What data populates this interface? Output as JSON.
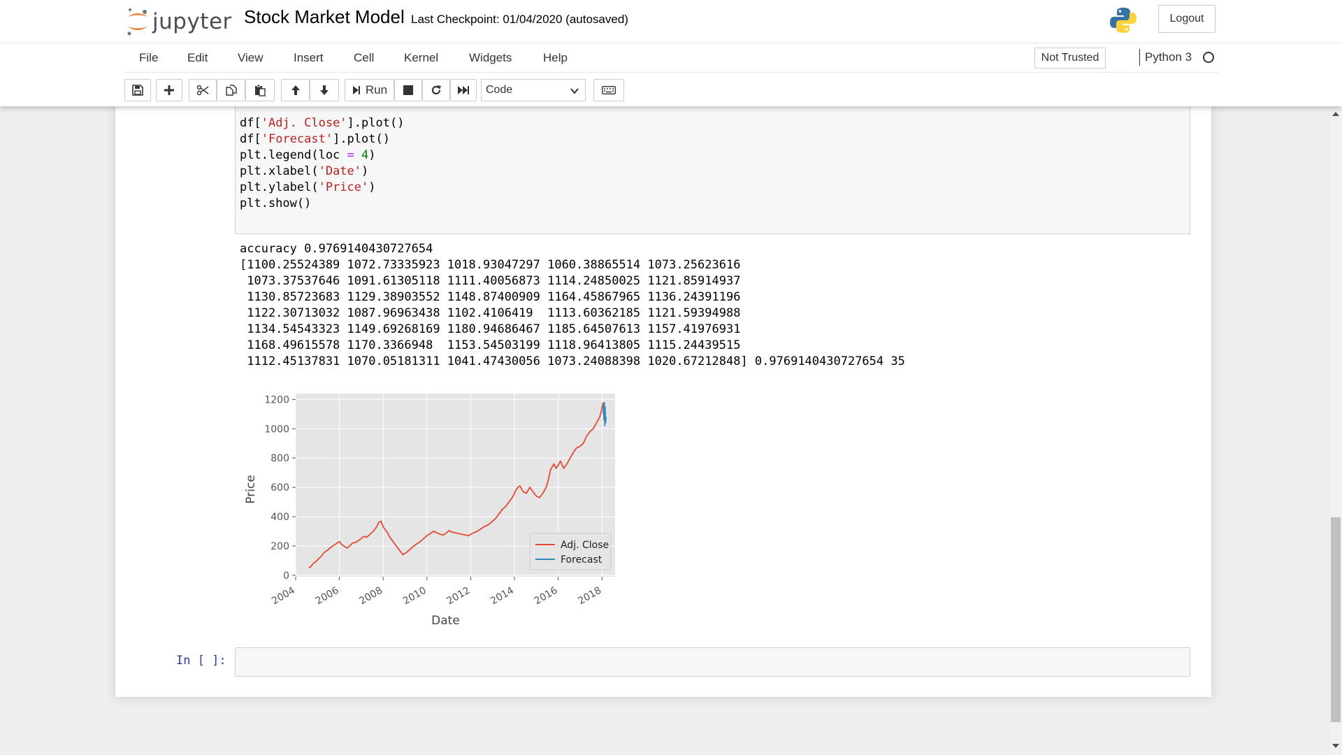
{
  "header": {
    "logo_text": "jupyter",
    "notebook_name": "Stock Market Model",
    "checkpoint": "Last Checkpoint: 01/04/2020   (autosaved)",
    "logout_label": "Logout"
  },
  "menu": {
    "items": [
      "File",
      "Edit",
      "View",
      "Insert",
      "Cell",
      "Kernel",
      "Widgets",
      "Help"
    ],
    "trust_label": "Not Trusted",
    "kernel_name": "Python 3"
  },
  "toolbar": {
    "run_label": "Run",
    "cell_type": "Code",
    "icons": [
      "save-icon",
      "plus-icon",
      "cut-icon",
      "copy-icon",
      "paste-icon",
      "arrow-up-icon",
      "arrow-down-icon",
      "run-icon",
      "stop-icon",
      "restart-icon",
      "fast-forward-icon",
      "keyboard-icon"
    ]
  },
  "cell": {
    "code": [
      "df['Adj. Close'].plot()",
      "df['Forecast'].plot()",
      "plt.legend(loc = 4)",
      "plt.xlabel('Date')",
      "plt.ylabel('Price')",
      "plt.show()"
    ],
    "output": [
      "accuracy 0.9769140430727654",
      "[1100.25524389 1072.73335923 1018.93047297 1060.38865514 1073.25623616",
      " 1073.37537646 1091.61305118 1111.40056873 1114.24850025 1121.85914937",
      " 1130.85723683 1129.38903552 1148.87400909 1164.45867965 1136.24391196",
      " 1122.30713032 1087.96963438 1102.4106419  1113.60362185 1121.59394988",
      " 1134.54543323 1149.69268169 1180.94686467 1185.64507613 1157.41976931",
      " 1168.49615578 1170.3366948  1153.54503199 1118.96413805 1115.24439515",
      " 1112.45137831 1070.05181311 1041.47430056 1073.24088398 1020.67212848] 0.9769140430727654 35"
    ]
  },
  "next_cell": {
    "prompt": "In [ ]:"
  },
  "chart_data": {
    "type": "line",
    "xlabel": "Date",
    "ylabel": "Price",
    "xlim": [
      2004,
      2018.6
    ],
    "ylim": [
      -10,
      1240
    ],
    "x_ticks": [
      "2004",
      "2006",
      "2008",
      "2010",
      "2012",
      "2014",
      "2016",
      "2018"
    ],
    "y_ticks": [
      0,
      200,
      400,
      600,
      800,
      1000,
      1200
    ],
    "grid": true,
    "legend_position": "bottom-right",
    "series": [
      {
        "name": "Adj. Close",
        "color": "#e24a33",
        "x": [
          2004.6,
          2004.7,
          2004.8,
          2004.9,
          2005.0,
          2005.1,
          2005.2,
          2005.3,
          2005.45,
          2005.6,
          2005.8,
          2006.0,
          2006.1,
          2006.2,
          2006.35,
          2006.5,
          2006.6,
          2006.75,
          2006.9,
          2007.0,
          2007.1,
          2007.25,
          2007.4,
          2007.55,
          2007.7,
          2007.8,
          2007.9,
          2008.0,
          2008.1,
          2008.2,
          2008.3,
          2008.45,
          2008.6,
          2008.75,
          2008.9,
          2009.0,
          2009.1,
          2009.25,
          2009.4,
          2009.55,
          2009.7,
          2009.85,
          2010.0,
          2010.15,
          2010.3,
          2010.45,
          2010.6,
          2010.75,
          2010.9,
          2011.0,
          2011.15,
          2011.3,
          2011.45,
          2011.6,
          2011.75,
          2011.9,
          2012.0,
          2012.15,
          2012.3,
          2012.45,
          2012.6,
          2012.75,
          2012.9,
          2013.0,
          2013.15,
          2013.3,
          2013.45,
          2013.6,
          2013.75,
          2013.9,
          2014.0,
          2014.1,
          2014.25,
          2014.4,
          2014.55,
          2014.7,
          2014.85,
          2015.0,
          2015.15,
          2015.3,
          2015.45,
          2015.55,
          2015.65,
          2015.8,
          2015.9,
          2016.0,
          2016.1,
          2016.25,
          2016.4,
          2016.55,
          2016.7,
          2016.85,
          2017.0,
          2017.15,
          2017.3,
          2017.45,
          2017.6,
          2017.75,
          2017.9,
          2018.0,
          2018.05
        ],
        "values": [
          50,
          60,
          80,
          90,
          105,
          120,
          135,
          155,
          170,
          190,
          210,
          230,
          210,
          200,
          185,
          205,
          220,
          225,
          240,
          250,
          265,
          260,
          280,
          300,
          330,
          360,
          370,
          330,
          310,
          290,
          260,
          230,
          200,
          170,
          140,
          150,
          160,
          180,
          200,
          215,
          230,
          250,
          270,
          285,
          300,
          290,
          280,
          275,
          290,
          305,
          295,
          290,
          285,
          280,
          275,
          270,
          280,
          290,
          300,
          315,
          330,
          340,
          355,
          370,
          390,
          420,
          450,
          470,
          500,
          530,
          560,
          590,
          610,
          570,
          560,
          600,
          570,
          540,
          530,
          560,
          600,
          650,
          720,
          760,
          730,
          750,
          780,
          730,
          760,
          800,
          840,
          870,
          880,
          900,
          950,
          980,
          1000,
          1040,
          1080,
          1140,
          1180
        ]
      },
      {
        "name": "Forecast",
        "color": "#348abd",
        "x": [
          2018.05,
          2018.07,
          2018.09,
          2018.11,
          2018.13,
          2018.15,
          2018.17,
          2018.19
        ],
        "values": [
          1100,
          1170,
          1060,
          1180,
          1020,
          1150,
          1040,
          1080
        ]
      }
    ]
  }
}
